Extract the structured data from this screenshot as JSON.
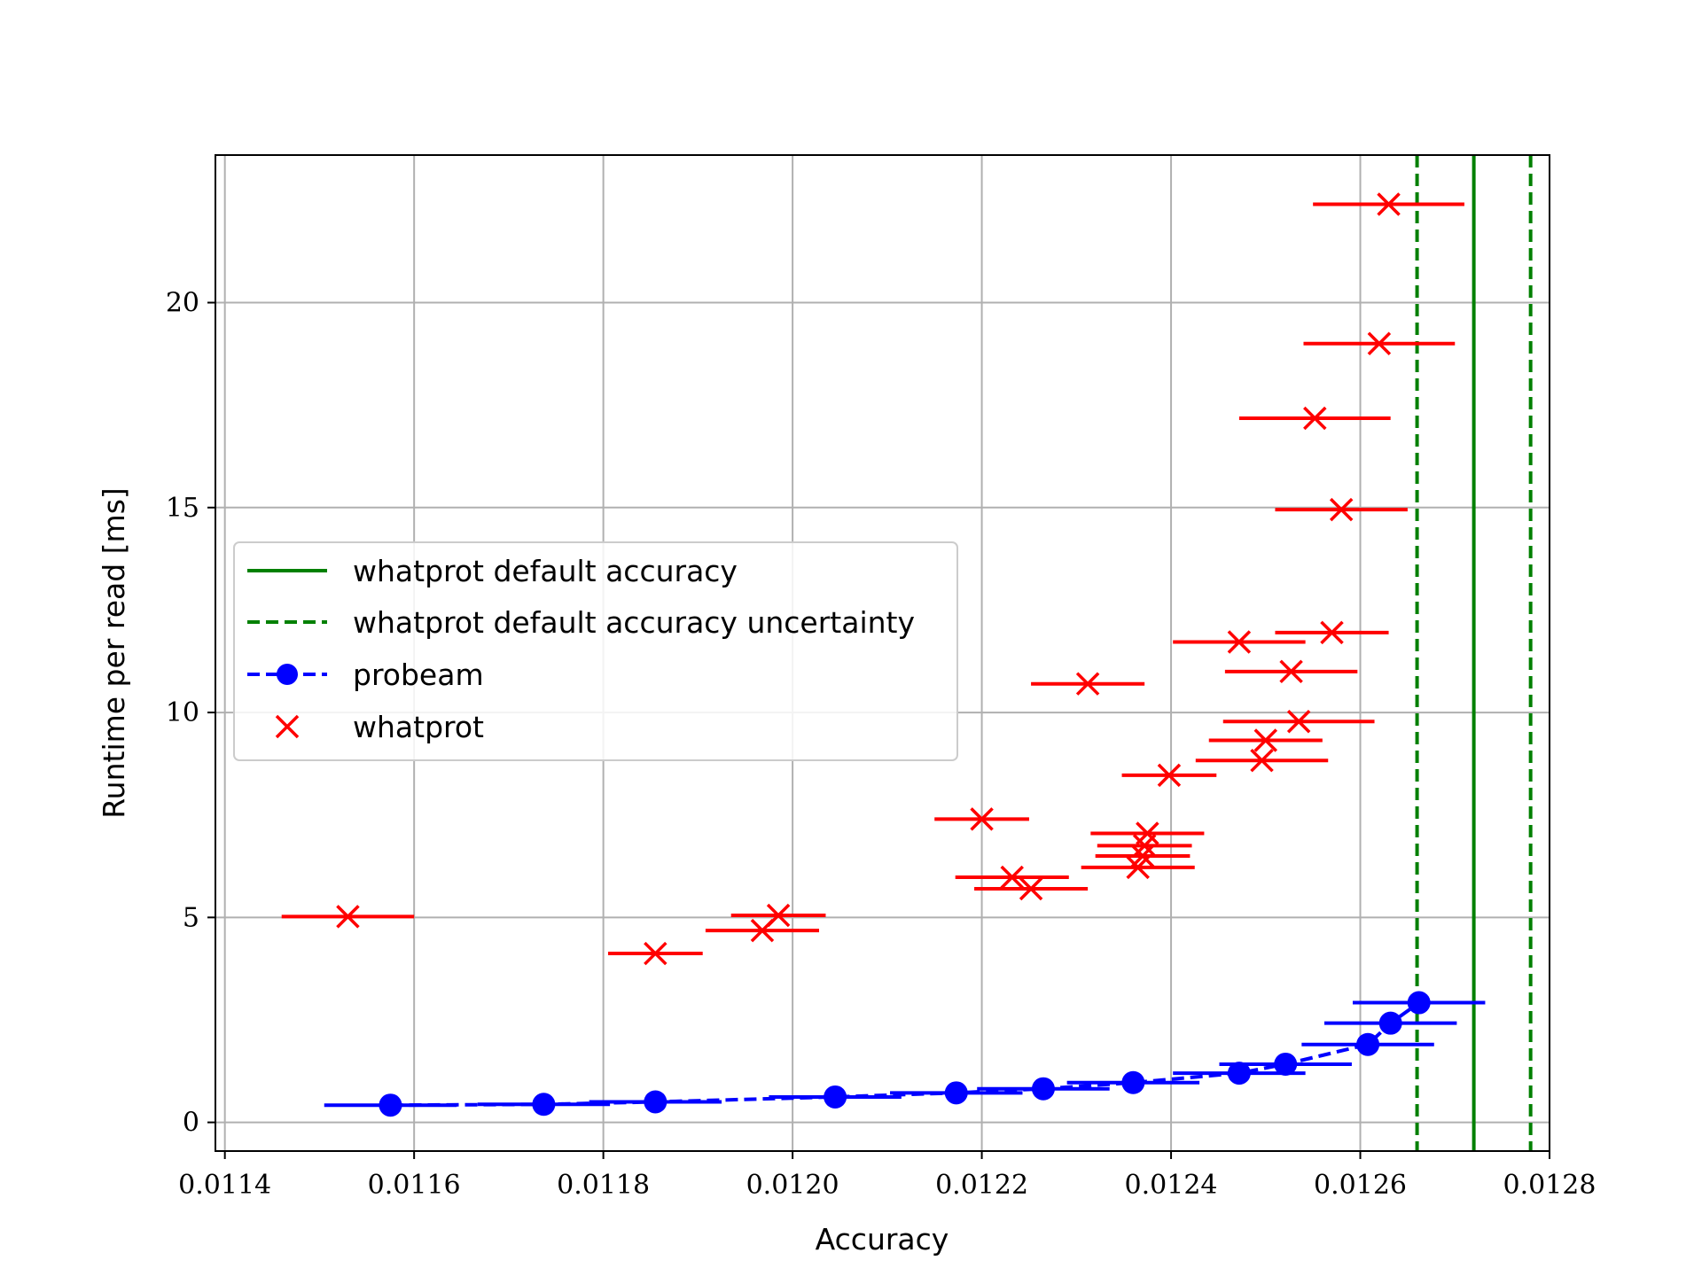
{
  "chart_data": {
    "type": "scatter",
    "xlabel": "Accuracy",
    "ylabel": "Runtime per read [ms]",
    "xlim": [
      0.01139,
      0.0128
    ],
    "ylim": [
      -0.7,
      23.6
    ],
    "xticks": [
      0.0114,
      0.0116,
      0.0118,
      0.012,
      0.0122,
      0.0124,
      0.0126,
      0.0128
    ],
    "xtick_labels": [
      "0.0114",
      "0.0116",
      "0.0118",
      "0.0120",
      "0.0122",
      "0.0124",
      "0.0126",
      "0.0128"
    ],
    "yticks": [
      0,
      5,
      10,
      15,
      20
    ],
    "ytick_labels": [
      "0",
      "5",
      "10",
      "15",
      "20"
    ],
    "grid": true,
    "legend_position": "center-left",
    "reference_lines": {
      "name": "whatprot default accuracy",
      "uncertainty_name": "whatprot default accuracy uncertainty",
      "color": "#008000",
      "x": 0.01272,
      "uncertainty": [
        0.01266,
        0.01278
      ]
    },
    "series": [
      {
        "name": "probeam",
        "color": "#0000ff",
        "marker": "circle",
        "line": "dashed",
        "points": [
          {
            "x": 0.011575,
            "y": 0.42,
            "xerr": 7e-05
          },
          {
            "x": 0.011737,
            "y": 0.44,
            "xerr": 7e-05
          },
          {
            "x": 0.011855,
            "y": 0.5,
            "xerr": 7e-05
          },
          {
            "x": 0.012045,
            "y": 0.62,
            "xerr": 7e-05
          },
          {
            "x": 0.012173,
            "y": 0.72,
            "xerr": 7e-05
          },
          {
            "x": 0.012265,
            "y": 0.82,
            "xerr": 7e-05
          },
          {
            "x": 0.01236,
            "y": 0.97,
            "xerr": 7e-05
          },
          {
            "x": 0.012472,
            "y": 1.2,
            "xerr": 7e-05
          },
          {
            "x": 0.012521,
            "y": 1.42,
            "xerr": 7e-05
          },
          {
            "x": 0.012608,
            "y": 1.9,
            "xerr": 7e-05
          },
          {
            "x": 0.012632,
            "y": 2.42,
            "xerr": 7e-05
          },
          {
            "x": 0.012662,
            "y": 2.92,
            "xerr": 7e-05
          }
        ]
      },
      {
        "name": "whatprot",
        "color": "#ff0000",
        "marker": "x",
        "line": "none",
        "points": [
          {
            "x": 0.01153,
            "y": 5.02,
            "xerr": 7e-05
          },
          {
            "x": 0.011855,
            "y": 4.12,
            "xerr": 5e-05
          },
          {
            "x": 0.011968,
            "y": 4.68,
            "xerr": 6e-05
          },
          {
            "x": 0.011985,
            "y": 5.05,
            "xerr": 5e-05
          },
          {
            "x": 0.0122,
            "y": 7.4,
            "xerr": 5e-05
          },
          {
            "x": 0.012232,
            "y": 5.98,
            "xerr": 6e-05
          },
          {
            "x": 0.012252,
            "y": 5.7,
            "xerr": 6e-05
          },
          {
            "x": 0.012312,
            "y": 10.7,
            "xerr": 6e-05
          },
          {
            "x": 0.012365,
            "y": 6.22,
            "xerr": 6e-05
          },
          {
            "x": 0.01237,
            "y": 6.5,
            "xerr": 5e-05
          },
          {
            "x": 0.012372,
            "y": 6.75,
            "xerr": 5e-05
          },
          {
            "x": 0.012375,
            "y": 7.05,
            "xerr": 6e-05
          },
          {
            "x": 0.012398,
            "y": 8.47,
            "xerr": 5e-05
          },
          {
            "x": 0.012472,
            "y": 11.72,
            "xerr": 7e-05
          },
          {
            "x": 0.012496,
            "y": 8.83,
            "xerr": 7e-05
          },
          {
            "x": 0.0125,
            "y": 9.32,
            "xerr": 6e-05
          },
          {
            "x": 0.012527,
            "y": 11.0,
            "xerr": 7e-05
          },
          {
            "x": 0.012535,
            "y": 9.78,
            "xerr": 8e-05
          },
          {
            "x": 0.012552,
            "y": 17.18,
            "xerr": 8e-05
          },
          {
            "x": 0.01257,
            "y": 11.95,
            "xerr": 6e-05
          },
          {
            "x": 0.01258,
            "y": 14.95,
            "xerr": 7e-05
          },
          {
            "x": 0.01262,
            "y": 19.0,
            "xerr": 8e-05
          },
          {
            "x": 0.01263,
            "y": 22.4,
            "xerr": 8e-05
          }
        ]
      }
    ]
  }
}
